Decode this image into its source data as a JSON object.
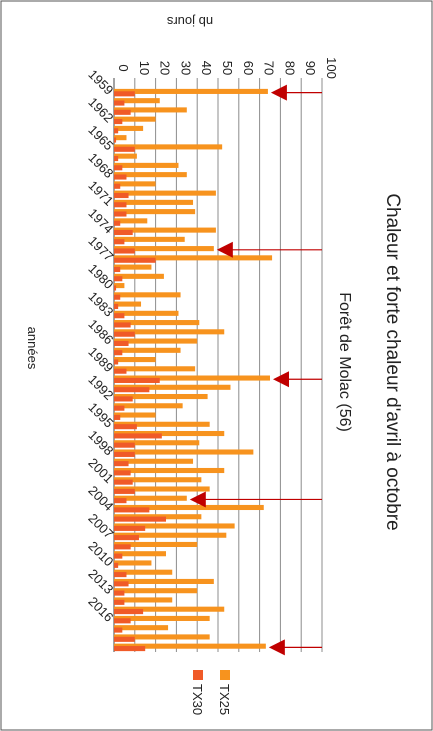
{
  "chart_data": {
    "type": "bar",
    "orientation": "rotated-90",
    "title": "Chaleur et forte chaleur d'avril à octobre",
    "subtitle": "Forêt de Molac (56)",
    "xlabel": "années",
    "ylabel": "nb jours",
    "ylim": [
      0,
      100
    ],
    "yticks": [
      "0",
      "10",
      "20",
      "30",
      "40",
      "50",
      "60",
      "70",
      "80",
      "90",
      "100"
    ],
    "grid": true,
    "legend_position": "bottom",
    "categories": [
      1959,
      1960,
      1961,
      1962,
      1963,
      1964,
      1965,
      1966,
      1967,
      1968,
      1969,
      1970,
      1971,
      1972,
      1973,
      1974,
      1975,
      1976,
      1977,
      1978,
      1979,
      1980,
      1981,
      1982,
      1983,
      1984,
      1985,
      1986,
      1987,
      1988,
      1989,
      1990,
      1991,
      1992,
      1993,
      1994,
      1995,
      1996,
      1997,
      1998,
      1999,
      2000,
      2001,
      2002,
      2003,
      2004,
      2005,
      2006,
      2007,
      2008,
      2009,
      2010,
      2011,
      2012,
      2013,
      2014,
      2015,
      2016,
      2017,
      2018,
      2019
    ],
    "xtick_labels": [
      "1959",
      "1962",
      "1965",
      "1968",
      "1971",
      "1974",
      "1977",
      "1980",
      "1983",
      "1986",
      "1989",
      "1992",
      "1995",
      "1998",
      "2001",
      "2004",
      "2007",
      "2010",
      "2013",
      "2016"
    ],
    "series": [
      {
        "name": "TX25",
        "color": "#F7931E",
        "values": [
          74,
          22,
          35,
          20,
          14,
          6,
          52,
          11,
          31,
          35,
          20,
          49,
          38,
          39,
          16,
          49,
          34,
          48,
          76,
          18,
          24,
          5,
          32,
          13,
          31,
          41,
          53,
          40,
          32,
          20,
          39,
          75,
          56,
          45,
          33,
          20,
          46,
          53,
          41,
          67,
          38,
          53,
          42,
          46,
          35,
          72,
          42,
          58,
          54,
          40,
          25,
          18,
          28,
          48,
          40,
          28,
          53,
          46,
          26,
          46,
          73
        ]
      },
      {
        "name": "TX30",
        "color": "#F05A28",
        "values": [
          10,
          5,
          8,
          4,
          2,
          1,
          10,
          2,
          4,
          6,
          3,
          7,
          6,
          6,
          3,
          9,
          5,
          10,
          20,
          3,
          4,
          1,
          3,
          2,
          5,
          8,
          10,
          7,
          4,
          2,
          6,
          22,
          17,
          9,
          5,
          3,
          11,
          23,
          10,
          10,
          7,
          8,
          9,
          10,
          6,
          17,
          25,
          15,
          12,
          8,
          4,
          2,
          6,
          7,
          5,
          5,
          14,
          8,
          4,
          10,
          15
        ]
      }
    ],
    "annotations": [
      {
        "type": "arrow",
        "year": 1959,
        "color": "#C00000"
      },
      {
        "type": "arrow",
        "year": 1976,
        "color": "#C00000"
      },
      {
        "type": "arrow",
        "year": 1990,
        "color": "#C00000"
      },
      {
        "type": "arrow",
        "year": 2003,
        "color": "#C00000"
      },
      {
        "type": "arrow",
        "year": 2019,
        "color": "#C00000"
      }
    ]
  }
}
